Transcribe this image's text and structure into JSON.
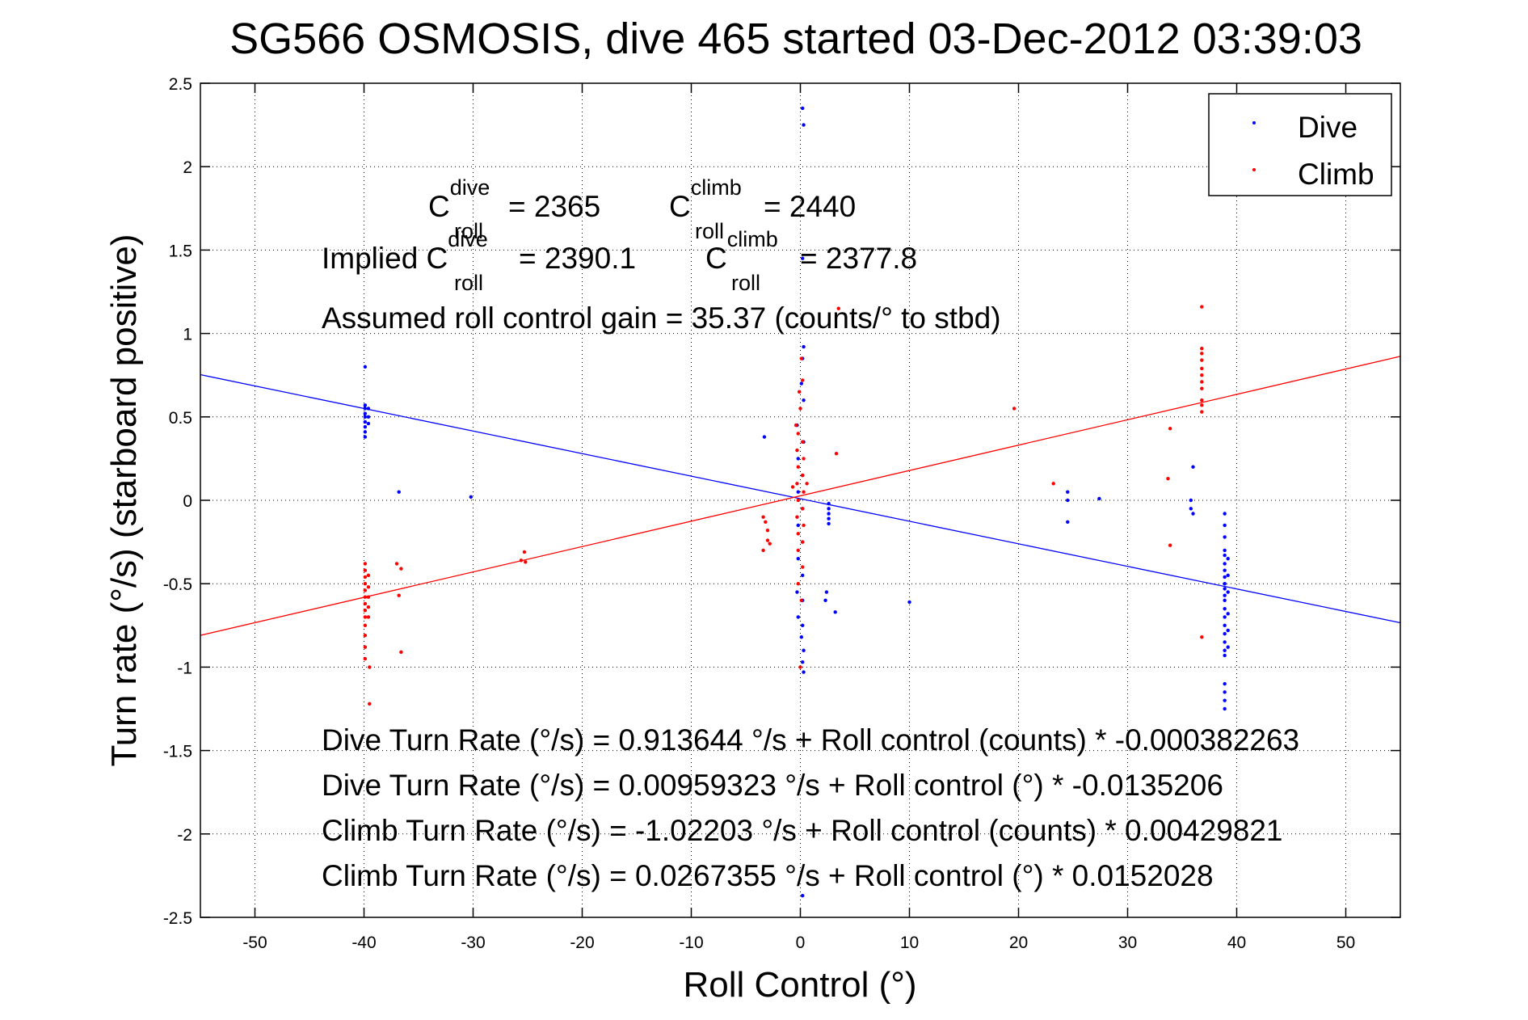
{
  "chart_data": {
    "type": "scatter",
    "title": "SG566 OSMOSIS, dive 465 started 03-Dec-2012 03:39:03",
    "xlabel": "Roll Control (°)",
    "ylabel": "Turn rate (°/s)  (starboard positive)",
    "xlim": [
      -55,
      55
    ],
    "ylim": [
      -2.5,
      2.5
    ],
    "x_ticks": [
      -50,
      -40,
      -30,
      -20,
      -10,
      0,
      10,
      20,
      30,
      40,
      50
    ],
    "y_ticks": [
      -2.5,
      -2,
      -1.5,
      -1,
      -0.5,
      0,
      0.5,
      1,
      1.5,
      2,
      2.5
    ],
    "grid": true,
    "legend": {
      "placement": "top-right",
      "entries": [
        {
          "label": "Dive",
          "color": "#0000ff"
        },
        {
          "label": "Climb",
          "color": "#ff0000"
        }
      ]
    },
    "series": [
      {
        "name": "Dive",
        "color": "#0000ff",
        "points": [
          [
            -39.9,
            0.8
          ],
          [
            -39.9,
            0.57
          ],
          [
            -39.9,
            0.55
          ],
          [
            -39.9,
            0.52
          ],
          [
            -39.9,
            0.5
          ],
          [
            -39.9,
            0.47
          ],
          [
            -39.9,
            0.44
          ],
          [
            -39.9,
            0.41
          ],
          [
            -39.9,
            0.38
          ],
          [
            -39.6,
            0.55
          ],
          [
            -39.6,
            0.5
          ],
          [
            -39.6,
            0.46
          ],
          [
            -36.8,
            0.05
          ],
          [
            -30.2,
            0.02
          ],
          [
            -3.3,
            0.38
          ],
          [
            0.2,
            2.35
          ],
          [
            0.3,
            2.25
          ],
          [
            0.2,
            1.45
          ],
          [
            0.3,
            0.92
          ],
          [
            0.2,
            0.85
          ],
          [
            0.1,
            0.7
          ],
          [
            0.3,
            0.6
          ],
          [
            -0.3,
            0.45
          ],
          [
            0.3,
            0.35
          ],
          [
            -0.2,
            0.25
          ],
          [
            0.2,
            0.15
          ],
          [
            -0.2,
            0.05
          ],
          [
            0.2,
            -0.05
          ],
          [
            -0.2,
            -0.15
          ],
          [
            0.2,
            -0.25
          ],
          [
            -0.2,
            -0.35
          ],
          [
            0.2,
            -0.45
          ],
          [
            -0.3,
            -0.55
          ],
          [
            0.2,
            -0.6
          ],
          [
            -0.2,
            -0.7
          ],
          [
            0.2,
            -0.75
          ],
          [
            0.1,
            -0.82
          ],
          [
            0.3,
            -0.9
          ],
          [
            0.2,
            -0.97
          ],
          [
            0.3,
            -1.03
          ],
          [
            0.2,
            -2.37
          ],
          [
            2.6,
            -0.02
          ],
          [
            2.6,
            -0.05
          ],
          [
            2.6,
            -0.08
          ],
          [
            2.6,
            -0.11
          ],
          [
            2.6,
            -0.14
          ],
          [
            2.4,
            -0.55
          ],
          [
            2.3,
            -0.6
          ],
          [
            3.2,
            -0.67
          ],
          [
            10.0,
            -0.61
          ],
          [
            24.5,
            0.05
          ],
          [
            24.5,
            0.0
          ],
          [
            24.5,
            -0.13
          ],
          [
            27.4,
            0.01
          ],
          [
            36.0,
            0.2
          ],
          [
            35.8,
            0.0
          ],
          [
            35.8,
            -0.05
          ],
          [
            36.0,
            -0.08
          ],
          [
            38.9,
            -0.08
          ],
          [
            38.9,
            -0.15
          ],
          [
            38.9,
            -0.22
          ],
          [
            38.9,
            -0.3
          ],
          [
            38.9,
            -0.33
          ],
          [
            38.9,
            -0.38
          ],
          [
            38.9,
            -0.42
          ],
          [
            38.9,
            -0.46
          ],
          [
            38.9,
            -0.5
          ],
          [
            38.9,
            -0.53
          ],
          [
            38.9,
            -0.57
          ],
          [
            38.9,
            -0.6
          ],
          [
            38.9,
            -0.65
          ],
          [
            38.9,
            -0.7
          ],
          [
            38.9,
            -0.75
          ],
          [
            38.9,
            -0.8
          ],
          [
            38.9,
            -0.85
          ],
          [
            38.9,
            -0.9
          ],
          [
            38.9,
            -0.93
          ],
          [
            38.9,
            -1.1
          ],
          [
            38.9,
            -1.15
          ],
          [
            38.9,
            -1.2
          ],
          [
            38.9,
            -1.25
          ],
          [
            39.2,
            -0.35
          ],
          [
            39.2,
            -0.45
          ],
          [
            39.2,
            -0.55
          ],
          [
            39.2,
            -0.68
          ],
          [
            39.2,
            -0.78
          ],
          [
            39.2,
            -0.88
          ]
        ]
      },
      {
        "name": "Climb",
        "color": "#ff0000",
        "points": [
          [
            -39.9,
            -0.38
          ],
          [
            -39.9,
            -0.42
          ],
          [
            -39.9,
            -0.46
          ],
          [
            -39.9,
            -0.5
          ],
          [
            -39.9,
            -0.54
          ],
          [
            -39.9,
            -0.58
          ],
          [
            -39.9,
            -0.62
          ],
          [
            -39.9,
            -0.66
          ],
          [
            -39.9,
            -0.7
          ],
          [
            -39.9,
            -0.75
          ],
          [
            -39.9,
            -0.81
          ],
          [
            -39.9,
            -0.88
          ],
          [
            -39.9,
            -0.95
          ],
          [
            -39.6,
            -0.45
          ],
          [
            -39.6,
            -0.52
          ],
          [
            -39.6,
            -0.58
          ],
          [
            -39.6,
            -0.64
          ],
          [
            -39.6,
            -0.7
          ],
          [
            -39.5,
            -1.0
          ],
          [
            -39.5,
            -1.22
          ],
          [
            -37.0,
            -0.38
          ],
          [
            -36.6,
            -0.41
          ],
          [
            -36.8,
            -0.57
          ],
          [
            -36.6,
            -0.91
          ],
          [
            -25.3,
            -0.31
          ],
          [
            -25.6,
            -0.36
          ],
          [
            -25.2,
            -0.37
          ],
          [
            -3.4,
            -0.1
          ],
          [
            -3.2,
            -0.13
          ],
          [
            -3.0,
            -0.18
          ],
          [
            -3.0,
            -0.24
          ],
          [
            -3.4,
            -0.3
          ],
          [
            -2.8,
            -0.26
          ],
          [
            -0.4,
            0.45
          ],
          [
            -0.2,
            0.4
          ],
          [
            0.2,
            0.35
          ],
          [
            -0.3,
            0.3
          ],
          [
            0.3,
            0.25
          ],
          [
            -0.2,
            0.2
          ],
          [
            0.2,
            0.15
          ],
          [
            -0.3,
            0.1
          ],
          [
            0.3,
            0.05
          ],
          [
            -0.2,
            0.0
          ],
          [
            0.2,
            -0.05
          ],
          [
            -0.3,
            -0.1
          ],
          [
            0.3,
            -0.15
          ],
          [
            -0.2,
            -0.2
          ],
          [
            0.2,
            -0.25
          ],
          [
            -0.2,
            -0.3
          ],
          [
            0.2,
            -0.4
          ],
          [
            -0.2,
            -0.5
          ],
          [
            0.1,
            -0.6
          ],
          [
            0.0,
            -1.0
          ],
          [
            0.1,
            0.85
          ],
          [
            0.2,
            0.72
          ],
          [
            -0.1,
            0.65
          ],
          [
            0.0,
            0.55
          ],
          [
            0.6,
            0.1
          ],
          [
            -0.7,
            0.08
          ],
          [
            3.3,
            0.28
          ],
          [
            3.5,
            1.15
          ],
          [
            19.6,
            0.55
          ],
          [
            23.2,
            0.1
          ],
          [
            33.9,
            0.43
          ],
          [
            33.7,
            0.13
          ],
          [
            33.9,
            -0.27
          ],
          [
            36.8,
            1.16
          ],
          [
            36.8,
            0.91
          ],
          [
            36.8,
            0.88
          ],
          [
            36.8,
            0.84
          ],
          [
            36.8,
            0.79
          ],
          [
            36.8,
            0.75
          ],
          [
            36.8,
            0.71
          ],
          [
            36.8,
            0.67
          ],
          [
            36.8,
            0.6
          ],
          [
            36.8,
            0.57
          ],
          [
            36.8,
            0.53
          ],
          [
            36.8,
            -0.82
          ]
        ]
      }
    ],
    "fit_lines": [
      {
        "name": "Dive fit",
        "color": "#0000ff",
        "intercept": 0.00959323,
        "slope": -0.0135206
      },
      {
        "name": "Climb fit",
        "color": "#ff0000",
        "intercept": 0.0267355,
        "slope": 0.0152028
      }
    ],
    "annotations": {
      "c_roll_dive_value": "= 2365",
      "c_roll_climb_value": "= 2440",
      "implied_prefix": "Implied C",
      "implied_dive_value": "= 2390.1",
      "implied_climb_value": "= 2377.8",
      "c_letter": "C",
      "sup_dive": "dive",
      "sup_climb": "climb",
      "sub_roll": "roll",
      "gain_line": "Assumed roll control gain = 35.37 (counts/° to stbd)",
      "fit_equations": [
        "Dive Turn Rate (°/s) = 0.913644 °/s + Roll control (counts) * -0.000382263",
        "Dive Turn Rate (°/s) = 0.00959323 °/s + Roll control (°) * -0.0135206",
        "Climb Turn Rate (°/s) = -1.02203 °/s + Roll control (counts) * 0.00429821",
        "Climb Turn Rate (°/s) = 0.0267355 °/s + Roll control (°) * 0.0152028"
      ]
    }
  }
}
